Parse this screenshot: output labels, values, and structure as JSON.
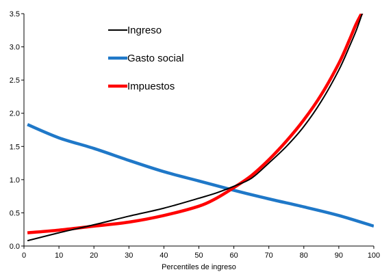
{
  "chart_data": {
    "type": "line",
    "title": "",
    "xlabel": "Percentiles de ingreso",
    "ylabel": "",
    "xlim": [
      0,
      100
    ],
    "ylim": [
      0.0,
      3.5
    ],
    "x_ticks": [
      "0",
      "10",
      "20",
      "30",
      "40",
      "50",
      "60",
      "70",
      "80",
      "90",
      "100"
    ],
    "y_ticks": [
      "0.0",
      "0.5",
      "1.0",
      "1.5",
      "2.0",
      "2.5",
      "3.0",
      "3.5"
    ],
    "grid": false,
    "legend_position": "top-left",
    "series": [
      {
        "name": "Ingreso",
        "color": "#000000",
        "x": [
          1,
          10,
          20,
          30,
          40,
          50,
          55,
          60,
          65,
          70,
          75,
          80,
          85,
          90,
          93,
          95,
          97
        ],
        "y": [
          0.08,
          0.2,
          0.32,
          0.45,
          0.57,
          0.72,
          0.8,
          0.9,
          1.02,
          1.25,
          1.5,
          1.8,
          2.18,
          2.65,
          3.0,
          3.25,
          3.55
        ]
      },
      {
        "name": "Gasto social",
        "color": "#1f78c8",
        "x": [
          1,
          10,
          20,
          30,
          40,
          50,
          60,
          70,
          80,
          90,
          100
        ],
        "y": [
          1.83,
          1.63,
          1.47,
          1.29,
          1.12,
          0.98,
          0.84,
          0.71,
          0.59,
          0.46,
          0.3
        ]
      },
      {
        "name": "Impuestos",
        "color": "#ff0000",
        "x": [
          1,
          10,
          20,
          30,
          40,
          50,
          55,
          60,
          65,
          70,
          75,
          80,
          85,
          90,
          93,
          95,
          97
        ],
        "y": [
          0.2,
          0.24,
          0.3,
          0.36,
          0.46,
          0.6,
          0.72,
          0.88,
          1.06,
          1.3,
          1.58,
          1.9,
          2.28,
          2.75,
          3.1,
          3.35,
          3.55
        ]
      }
    ]
  }
}
